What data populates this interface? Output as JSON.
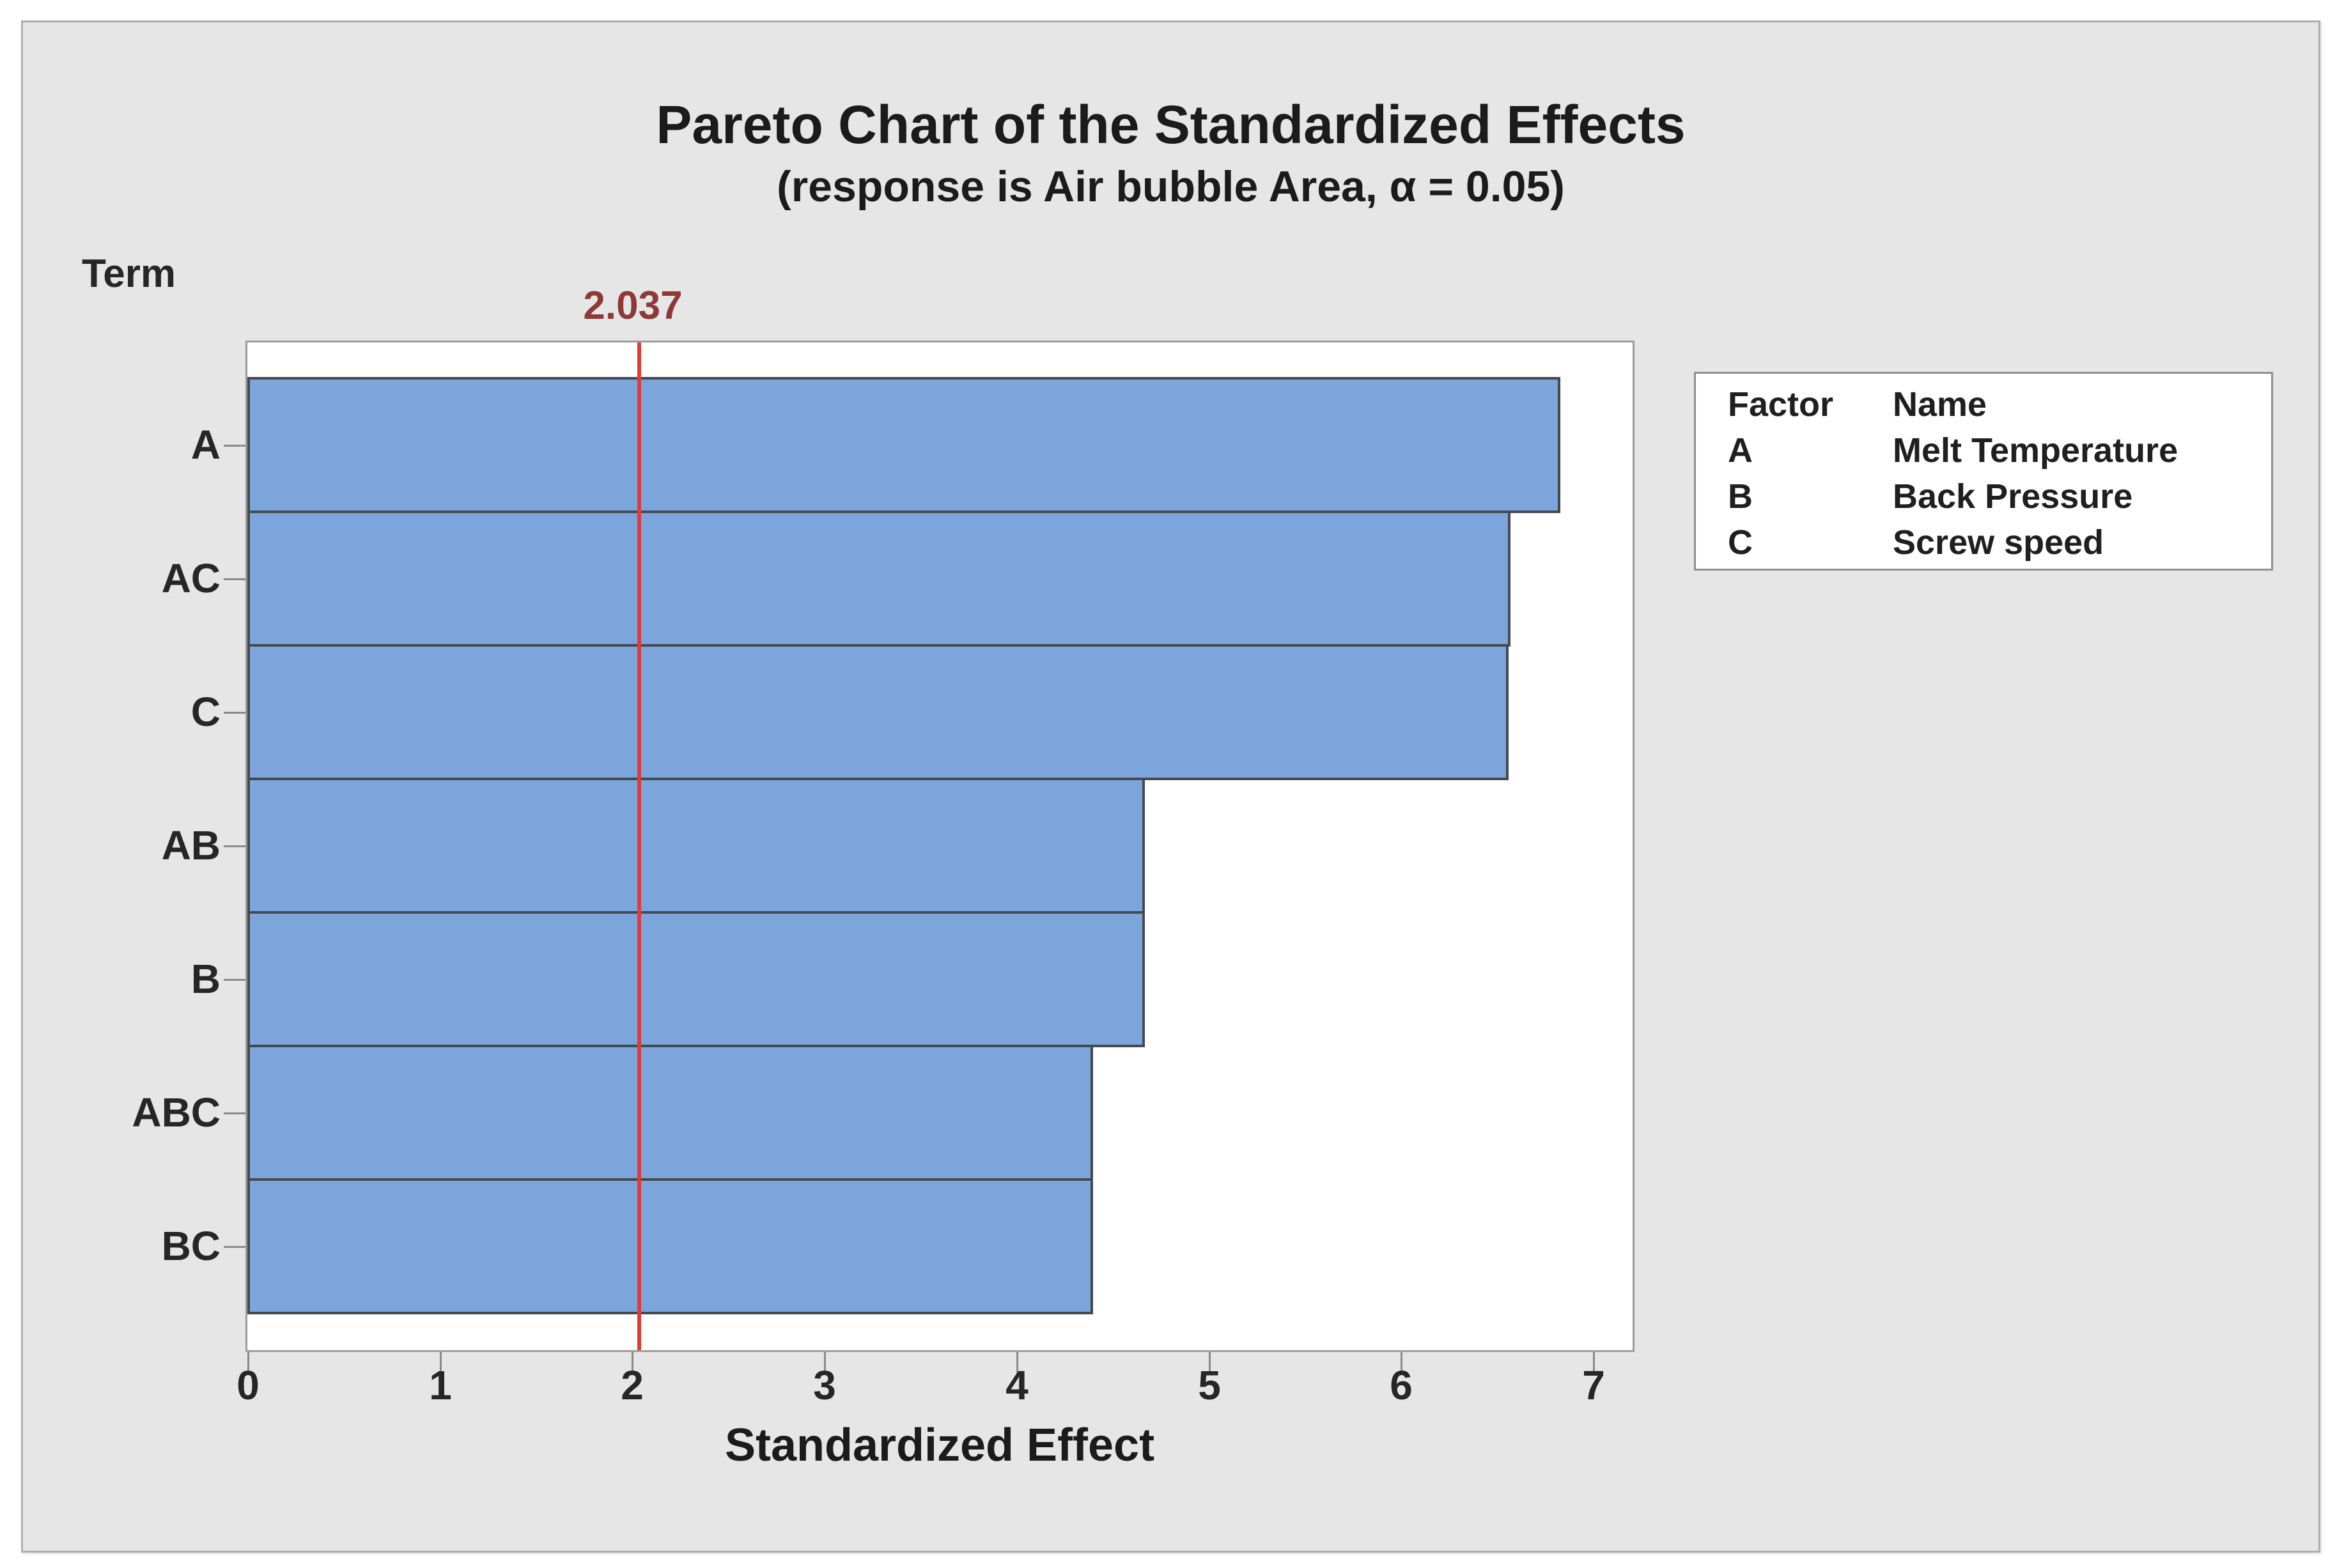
{
  "chart": {
    "title": "Pareto Chart of the Standardized Effects",
    "subtitle": "(response is Air bubble Area, α = 0.05)",
    "term_axis_label": "Term",
    "x_axis_label": "Standardized Effect",
    "reference_line_label": "2.037"
  },
  "chart_data": {
    "type": "bar",
    "orientation": "horizontal",
    "title": "Pareto Chart of the Standardized Effects",
    "subtitle": "(response is Air bubble Area, α = 0.05)",
    "response": "Air bubble Area",
    "alpha": 0.05,
    "categories": [
      "A",
      "AC",
      "C",
      "AB",
      "B",
      "ABC",
      "BC"
    ],
    "values": [
      6.82,
      6.56,
      6.55,
      4.66,
      4.66,
      4.39,
      4.39
    ],
    "xlabel": "Standardized Effect",
    "ylabel": "Term",
    "xlim": [
      0,
      7.22
    ],
    "x_ticks": [
      "0",
      "1",
      "2",
      "3",
      "4",
      "5",
      "6",
      "7"
    ],
    "reference_line": 2.037,
    "grid": false,
    "legend_position": "right"
  },
  "legend": {
    "headers": {
      "factor": "Factor",
      "name": "Name"
    },
    "rows": [
      {
        "factor": "A",
        "name": "Melt Temperature"
      },
      {
        "factor": "B",
        "name": "Back Pressure"
      },
      {
        "factor": "C",
        "name": "Screw speed"
      }
    ]
  },
  "colors": {
    "bar_fill": "#7ca6db",
    "bar_border": "#45494e",
    "reference_line": "#e03b3b",
    "reference_label": "#8e3838",
    "panel_bg": "#e6e6e6",
    "plot_bg": "#ffffff",
    "text": "#1b1b1b"
  }
}
